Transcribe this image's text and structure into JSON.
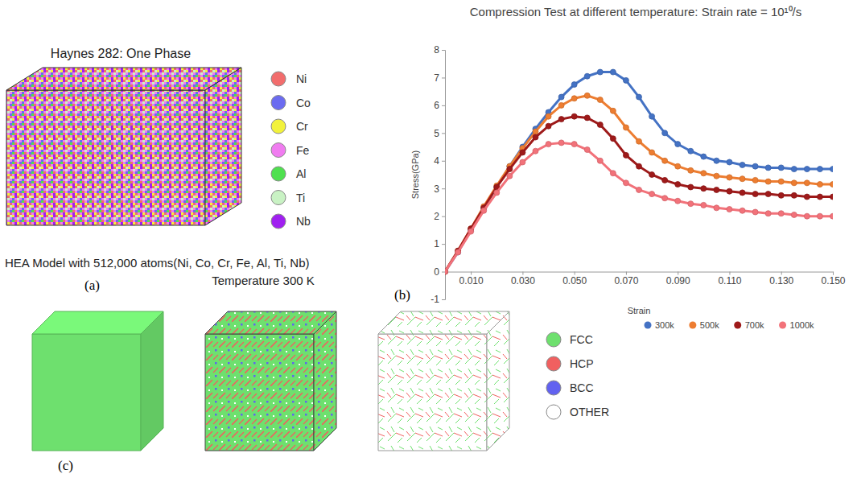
{
  "chart_data": {
    "type": "line",
    "title": "Compression Test at different temperature: Strain rate = 10¹⁰/s",
    "panel_label": "(b)",
    "x_label": "Strain",
    "y_label": "Stress(GPa)",
    "x": [
      0,
      0.005,
      0.01,
      0.015,
      0.02,
      0.025,
      0.03,
      0.035,
      0.04,
      0.045,
      0.05,
      0.055,
      0.06,
      0.065,
      0.07,
      0.075,
      0.08,
      0.085,
      0.09,
      0.095,
      0.1,
      0.105,
      0.11,
      0.115,
      0.12,
      0.125,
      0.13,
      0.135,
      0.14,
      0.145,
      0.15
    ],
    "xlim": [
      0,
      0.15
    ],
    "xticks": [
      {
        "value": 0.01,
        "label": "0.010"
      },
      {
        "value": 0.03,
        "label": "0.030"
      },
      {
        "value": 0.05,
        "label": "0.050"
      },
      {
        "value": 0.07,
        "label": "0.070"
      },
      {
        "value": 0.09,
        "label": "0.090"
      },
      {
        "value": 0.11,
        "label": "0.110"
      },
      {
        "value": 0.13,
        "label": "0.130"
      },
      {
        "value": 0.15,
        "label": "0.150"
      }
    ],
    "ylim": [
      -1,
      8
    ],
    "yticks": [
      -1,
      0,
      1,
      2,
      3,
      4,
      5,
      6,
      7,
      8
    ],
    "grid": false,
    "legend": "bottom",
    "marker": "circle",
    "line_style": "solid",
    "series": [
      {
        "name": "300k",
        "color": "#4472c4",
        "values": [
          0,
          0.7,
          1.5,
          2.3,
          3.05,
          3.8,
          4.5,
          5.15,
          5.75,
          6.3,
          6.75,
          7.05,
          7.2,
          7.2,
          6.9,
          6.3,
          5.6,
          5.0,
          4.6,
          4.35,
          4.15,
          4.0,
          3.95,
          3.85,
          3.8,
          3.75,
          3.75,
          3.7,
          3.7,
          3.7,
          3.7
        ]
      },
      {
        "name": "500k",
        "color": "#ed7d31",
        "values": [
          0,
          0.75,
          1.55,
          2.35,
          3.1,
          3.8,
          4.45,
          5.05,
          5.6,
          6.0,
          6.25,
          6.35,
          6.2,
          5.8,
          5.2,
          4.7,
          4.3,
          4.0,
          3.8,
          3.65,
          3.55,
          3.45,
          3.4,
          3.35,
          3.3,
          3.25,
          3.25,
          3.2,
          3.2,
          3.15,
          3.15
        ]
      },
      {
        "name": "700k",
        "color": "#9e1a1a",
        "values": [
          0,
          0.75,
          1.55,
          2.3,
          3.05,
          3.7,
          4.3,
          4.85,
          5.25,
          5.5,
          5.6,
          5.55,
          5.3,
          4.8,
          4.2,
          3.8,
          3.5,
          3.3,
          3.15,
          3.05,
          3.0,
          2.95,
          2.9,
          2.85,
          2.8,
          2.8,
          2.75,
          2.75,
          2.7,
          2.7,
          2.7
        ]
      },
      {
        "name": "1000k",
        "color": "#f2727a",
        "values": [
          0,
          0.7,
          1.45,
          2.2,
          2.85,
          3.45,
          3.95,
          4.35,
          4.6,
          4.65,
          4.6,
          4.4,
          4.0,
          3.55,
          3.2,
          2.95,
          2.8,
          2.65,
          2.55,
          2.45,
          2.4,
          2.3,
          2.25,
          2.2,
          2.15,
          2.1,
          2.1,
          2.05,
          2.0,
          2.0,
          2.0
        ]
      }
    ]
  },
  "panel_a": {
    "title": "Haynes 282: One Phase",
    "items": [
      {
        "name": "Ni",
        "color": "#f26d6d"
      },
      {
        "name": "Co",
        "color": "#6b6bf0"
      },
      {
        "name": "Cr",
        "color": "#f2f23c"
      },
      {
        "name": "Fe",
        "color": "#f07cf0"
      },
      {
        "name": "Al",
        "color": "#4fe04f"
      },
      {
        "name": "Ti",
        "color": "#c9f2c4"
      },
      {
        "name": "Nb",
        "color": "#a020f0"
      }
    ],
    "caption": "HEA Model with 512,000 atoms(Ni, Co, Cr, Fe, Al, Ti, Nb)",
    "label": "(a)"
  },
  "panel_c": {
    "title": "Temperature 300 K",
    "items": [
      {
        "name": "FCC",
        "color": "#6ee06e"
      },
      {
        "name": "HCP",
        "color": "#f06060"
      },
      {
        "name": "BCC",
        "color": "#6262f0"
      },
      {
        "name": "OTHER",
        "color": "#ffffff"
      }
    ],
    "label": "(c)"
  }
}
